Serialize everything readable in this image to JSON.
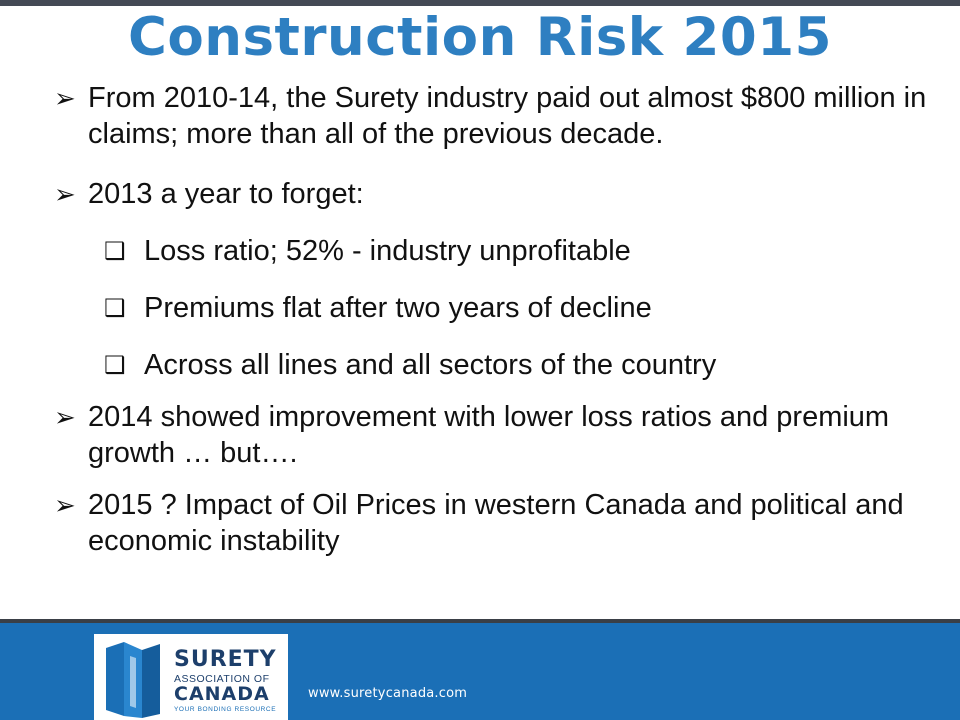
{
  "slide": {
    "title": "Construction Risk 2015",
    "bullets": [
      {
        "marker": "➢",
        "text": "From 2010-14, the Surety industry paid out almost $800 million in claims; more than all of the previous decade."
      },
      {
        "marker": "➢",
        "text": "2013 a year to forget:"
      },
      {
        "marker": "❑",
        "text": "Loss ratio; 52% - industry unprofitable"
      },
      {
        "marker": "❑",
        "text": "Premiums flat after two years of decline"
      },
      {
        "marker": "❑",
        "text": "Across all lines and all sectors of the country"
      },
      {
        "marker": "➢",
        "text": "2014 showed improvement with lower loss ratios and premium growth … but…."
      },
      {
        "marker": "➢",
        "text": "2015 ? Impact of Oil Prices in western Canada and political and economic instability"
      }
    ]
  },
  "footer": {
    "logo_line1": "SURETY",
    "logo_line2": "ASSOCIATION OF",
    "logo_line3": "CANADA",
    "logo_tagline": "YOUR BONDING RESOURCE",
    "url": "www.suretycanada.com",
    "brand_blue": "#1b6fb6",
    "title_blue": "#2e7fc1"
  }
}
